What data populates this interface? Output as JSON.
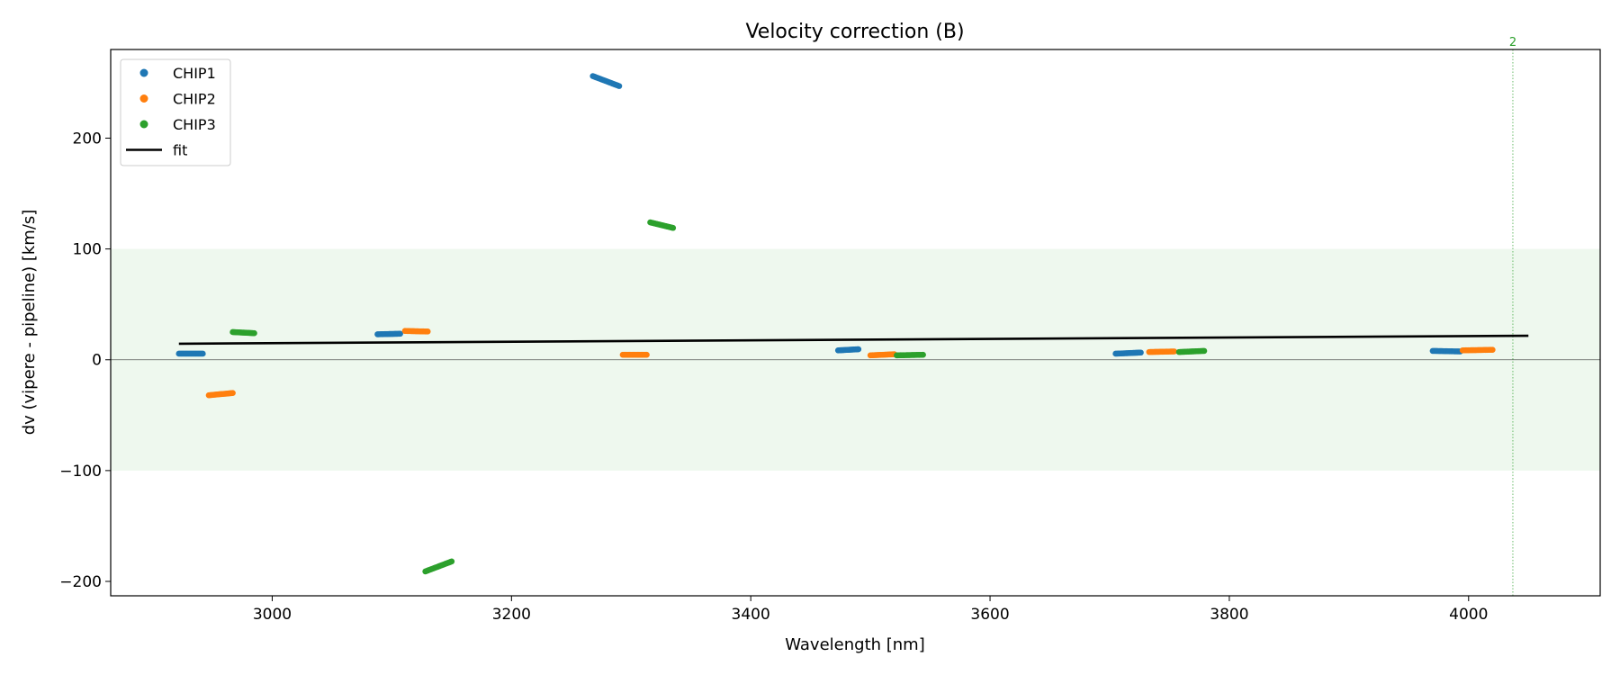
{
  "chart_data": {
    "type": "scatter",
    "title": "Velocity correction (B)",
    "xlabel": "Wavelength [nm]",
    "ylabel": "dv (vipere - pipeline) [km/s]",
    "xlim": [
      2865,
      4110
    ],
    "ylim": [
      -213,
      280
    ],
    "xticks": [
      3000,
      3200,
      3400,
      3600,
      3800,
      4000
    ],
    "yticks": [
      -200,
      -100,
      0,
      100,
      200
    ],
    "ytick_labels": [
      "−200",
      "−100",
      "0",
      "100",
      "200"
    ],
    "grid": false,
    "legend_position": "upper left",
    "band": {
      "y0": -100,
      "y1": 100,
      "color": "#2ca02c"
    },
    "zero_line": 0,
    "vline": {
      "x": 4037,
      "label": "2",
      "color": "#2ca02c"
    },
    "fit": {
      "name": "fit",
      "color": "#000000",
      "x": [
        2922,
        4050
      ],
      "y": [
        14.5,
        21.7
      ]
    },
    "series": [
      {
        "name": "CHIP1",
        "color": "#1f77b4",
        "segments": [
          {
            "x0": 2922,
            "x1": 2942,
            "y0": 5.5,
            "y1": 5.5
          },
          {
            "x0": 3088,
            "x1": 3107,
            "y0": 23,
            "y1": 23.5
          },
          {
            "x0": 3268,
            "x1": 3290,
            "y0": 256,
            "y1": 247
          },
          {
            "x0": 3473,
            "x1": 3490,
            "y0": 8.5,
            "y1": 9.5
          },
          {
            "x0": 3705,
            "x1": 3726,
            "y0": 5.5,
            "y1": 6.5
          },
          {
            "x0": 3970,
            "x1": 3993,
            "y0": 8,
            "y1": 7.5
          }
        ]
      },
      {
        "name": "CHIP2",
        "color": "#ff7f0e",
        "segments": [
          {
            "x0": 2947,
            "x1": 2967,
            "y0": -32,
            "y1": -30
          },
          {
            "x0": 3111,
            "x1": 3130,
            "y0": 26,
            "y1": 25.5
          },
          {
            "x0": 3293,
            "x1": 3313,
            "y0": 4.5,
            "y1": 4.5
          },
          {
            "x0": 3500,
            "x1": 3520,
            "y0": 4,
            "y1": 5
          },
          {
            "x0": 3733,
            "x1": 3754,
            "y0": 7,
            "y1": 7.5
          },
          {
            "x0": 3995,
            "x1": 4020,
            "y0": 8.5,
            "y1": 9
          }
        ]
      },
      {
        "name": "CHIP3",
        "color": "#2ca02c",
        "segments": [
          {
            "x0": 2967,
            "x1": 2985,
            "y0": 25,
            "y1": 24
          },
          {
            "x0": 3128,
            "x1": 3150,
            "y0": -191,
            "y1": -182
          },
          {
            "x0": 3316,
            "x1": 3335,
            "y0": 124,
            "y1": 119
          },
          {
            "x0": 3522,
            "x1": 3544,
            "y0": 4,
            "y1": 4.5
          },
          {
            "x0": 3758,
            "x1": 3779,
            "y0": 7,
            "y1": 8
          }
        ]
      }
    ]
  }
}
